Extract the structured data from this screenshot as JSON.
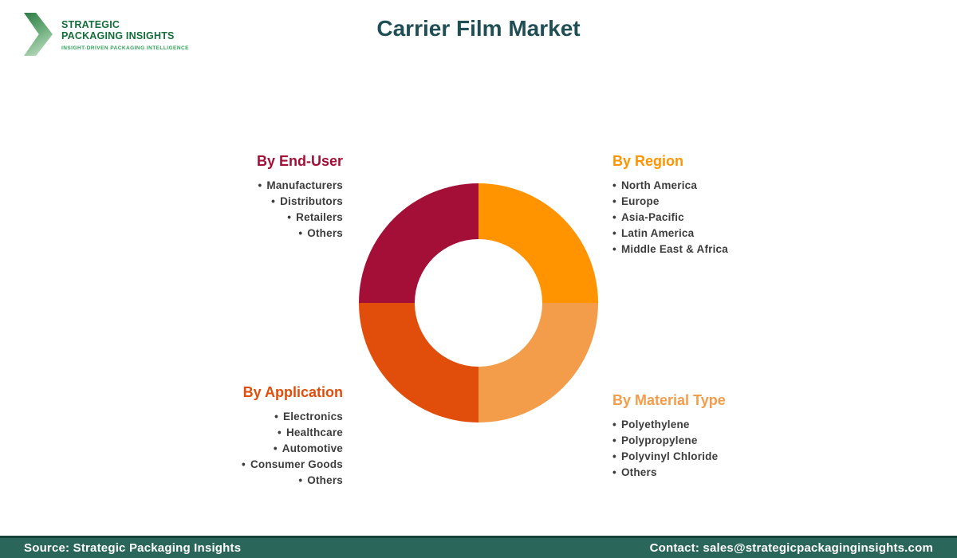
{
  "logo": {
    "line1": "STRATEGIC",
    "line2": "PACKAGING INSIGHTS",
    "tagline": "INSIGHT-DRIVEN PACKAGING INTELLIGENCE"
  },
  "title": "Carrier Film Market",
  "chart_data": {
    "type": "pie",
    "donut": true,
    "title": "Carrier Film Market",
    "legend_position": "corners",
    "segments": [
      {
        "label": "By Region",
        "value": 25,
        "color": "#FF9300",
        "position": "top-right",
        "items": [
          "North America",
          "Europe",
          "Asia-Pacific",
          "Latin America",
          "Middle East & Africa"
        ]
      },
      {
        "label": "By Material Type",
        "value": 25,
        "color": "#F39C4A",
        "position": "bottom-right",
        "items": [
          "Polyethylene",
          "Polypropylene",
          "Polyvinyl Chloride",
          "Others"
        ]
      },
      {
        "label": "By Application",
        "value": 25,
        "color": "#E14D0A",
        "position": "bottom-left",
        "items": [
          "Electronics",
          "Healthcare",
          "Automotive",
          "Consumer Goods",
          "Others"
        ]
      },
      {
        "label": "By End-User",
        "value": 25,
        "color": "#A30F36",
        "position": "top-left",
        "items": [
          "Manufacturers",
          "Distributors",
          "Retailers",
          "Others"
        ]
      }
    ]
  },
  "footer": {
    "source": "Source: Strategic Packaging Insights",
    "contact": "Contact: sales@strategicpackaginginsights.com",
    "bar_color": "#2A665A"
  }
}
